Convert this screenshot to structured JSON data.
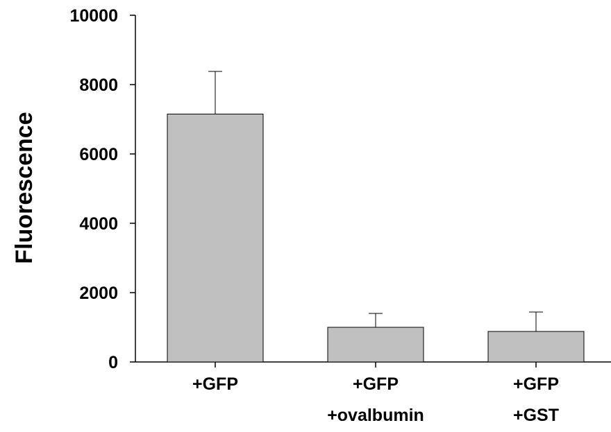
{
  "chart_data": {
    "type": "bar",
    "categories": [
      [
        "+GFP"
      ],
      [
        "+GFP",
        "+ovalbumin"
      ],
      [
        "+GFP",
        "+GST"
      ]
    ],
    "values": [
      7150,
      1000,
      880
    ],
    "error_upper": [
      8380,
      1400,
      1440
    ],
    "ylabel": "Fluorescence",
    "xlabel": "",
    "ylim": [
      0,
      10000
    ],
    "yticks": [
      "0",
      "2000",
      "4000",
      "6000",
      "8000",
      "10000"
    ],
    "grid": false,
    "bar_color": "#c0c0c0",
    "bar_edge_color": "#000000"
  }
}
